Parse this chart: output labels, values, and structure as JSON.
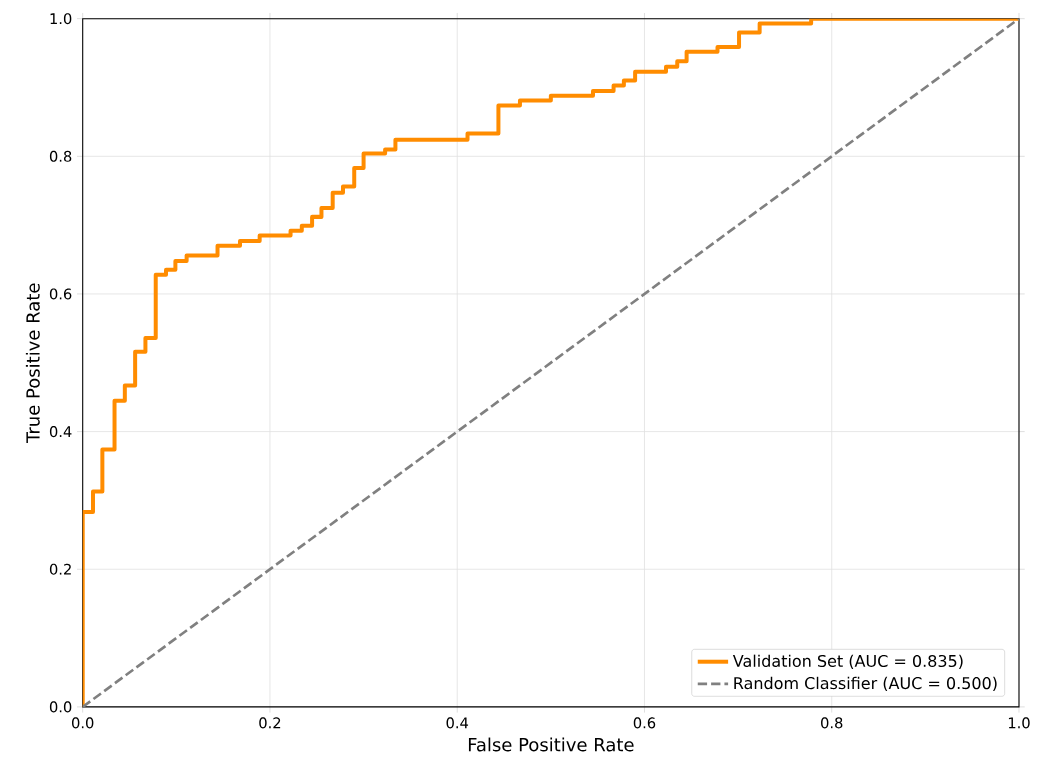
{
  "chart_data": {
    "type": "line",
    "xlabel": "False Positive Rate",
    "ylabel": "True Positive Rate",
    "xlim": [
      0,
      1
    ],
    "ylim": [
      0,
      1
    ],
    "xticks": [
      {
        "value": 0,
        "label": "0.0"
      },
      {
        "value": 0.2,
        "label": "0.2"
      },
      {
        "value": 0.4,
        "label": "0.4"
      },
      {
        "value": 0.6,
        "label": "0.6"
      },
      {
        "value": 0.8,
        "label": "0.8"
      },
      {
        "value": 1,
        "label": "1.0"
      }
    ],
    "yticks": [
      {
        "value": 0,
        "label": "0.0"
      },
      {
        "value": 0.2,
        "label": "0.2"
      },
      {
        "value": 0.4,
        "label": "0.4"
      },
      {
        "value": 0.6,
        "label": "0.6"
      },
      {
        "value": 0.8,
        "label": "0.8"
      },
      {
        "value": 1,
        "label": "1.0"
      }
    ],
    "grid": true,
    "legend": "bottom right",
    "series": [
      {
        "name": "Validation Set (AUC = 0.835)",
        "type": "step",
        "color": "#ff8c00",
        "line_style": "solid",
        "x": [
          0,
          0,
          0.011,
          0.021,
          0.034,
          0.045,
          0.056,
          0.067,
          0.078,
          0.089,
          0.099,
          0.111,
          0.144,
          0.168,
          0.189,
          0.222,
          0.234,
          0.245,
          0.255,
          0.267,
          0.278,
          0.29,
          0.3,
          0.323,
          0.334,
          0.411,
          0.444,
          0.467,
          0.5,
          0.545,
          0.567,
          0.578,
          0.59,
          0.623,
          0.635,
          0.645,
          0.678,
          0.701,
          0.723,
          0.778,
          1
        ],
        "values": [
          0,
          0.283,
          0.313,
          0.374,
          0.445,
          0.467,
          0.516,
          0.536,
          0.628,
          0.635,
          0.648,
          0.656,
          0.67,
          0.677,
          0.685,
          0.692,
          0.699,
          0.712,
          0.725,
          0.747,
          0.756,
          0.783,
          0.804,
          0.81,
          0.824,
          0.833,
          0.874,
          0.881,
          0.888,
          0.895,
          0.903,
          0.91,
          0.923,
          0.93,
          0.938,
          0.952,
          0.959,
          0.98,
          0.993,
          1,
          1
        ]
      },
      {
        "name": "Random Classifier (AUC = 0.500)",
        "color": "#808080",
        "line_style": "dashed",
        "x": [
          0,
          1
        ],
        "values": [
          0,
          1
        ]
      }
    ]
  }
}
